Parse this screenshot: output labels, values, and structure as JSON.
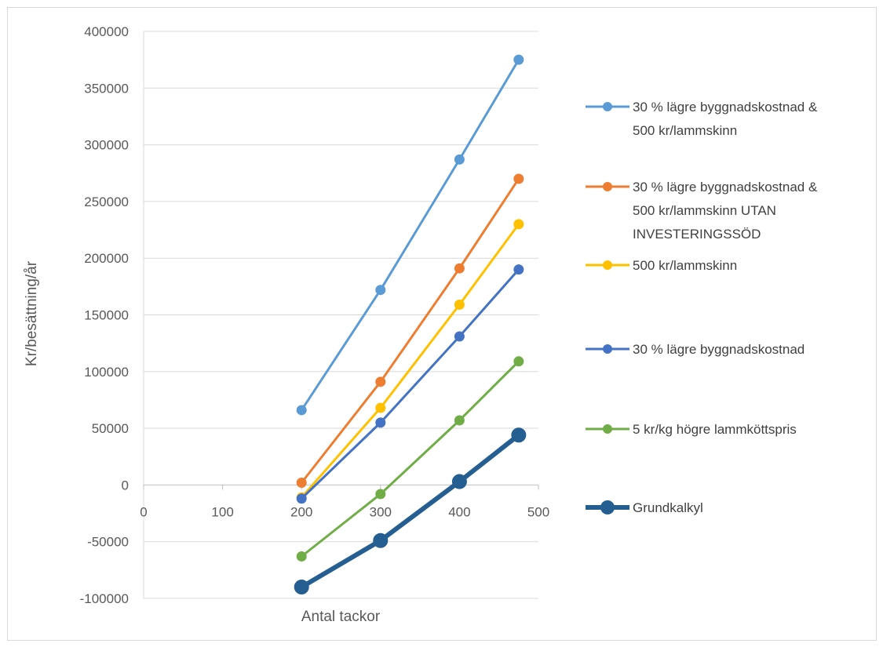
{
  "chart_data": {
    "type": "line",
    "title": "",
    "xlabel": "Antal tackor",
    "ylabel": "Kr/besättning/år",
    "xlim": [
      0,
      500
    ],
    "ylim": [
      -100000,
      400000
    ],
    "x_ticks": [
      0,
      100,
      200,
      300,
      400,
      500
    ],
    "y_ticks": [
      -100000,
      -50000,
      0,
      50000,
      100000,
      150000,
      200000,
      250000,
      300000,
      350000,
      400000
    ],
    "grid": "horizontal",
    "legend_position": "right",
    "series": [
      {
        "name": "30 % lägre byggnadskostnad & 500 kr/lammskinn",
        "legend_lines": [
          "30 % lägre byggnadskostnad &",
          "500 kr/lammskinn"
        ],
        "color": "#5B9BD5",
        "x": [
          200,
          300,
          400,
          475
        ],
        "y": [
          66000,
          172000,
          287000,
          375000
        ]
      },
      {
        "name": "30 % lägre byggnadskostnad & 500 kr/lammskinn UTAN INVESTERINGSSÖD",
        "legend_lines": [
          "30 % lägre byggnadskostnad &",
          "500 kr/lammskinn UTAN",
          "INVESTERINGSSÖD"
        ],
        "color": "#ED7D31",
        "x": [
          200,
          300,
          400,
          475
        ],
        "y": [
          2000,
          91000,
          191000,
          270000
        ]
      },
      {
        "name": "500 kr/lammskinn",
        "legend_lines": [
          "500 kr/lammskinn"
        ],
        "color": "#FFC000",
        "x": [
          200,
          300,
          400,
          475
        ],
        "y": [
          -11000,
          68000,
          159000,
          230000
        ]
      },
      {
        "name": "30 % lägre byggnadskostnad",
        "legend_lines": [
          "30 % lägre byggnadskostnad"
        ],
        "color": "#4472C4",
        "x": [
          200,
          300,
          400,
          475
        ],
        "y": [
          -12000,
          55000,
          131000,
          190000
        ]
      },
      {
        "name": "5 kr/kg högre lammköttspris",
        "legend_lines": [
          "5 kr/kg högre lammköttspris"
        ],
        "color": "#70AD47",
        "x": [
          200,
          300,
          400,
          475
        ],
        "y": [
          -63000,
          -8000,
          57000,
          109000
        ]
      },
      {
        "name": "Grundkalkyl",
        "legend_lines": [
          "Grundkalkyl"
        ],
        "color": "#255E91",
        "emphasis": "thick",
        "x": [
          200,
          300,
          400,
          475
        ],
        "y": [
          -90000,
          -49000,
          3000,
          44000
        ]
      }
    ]
  }
}
